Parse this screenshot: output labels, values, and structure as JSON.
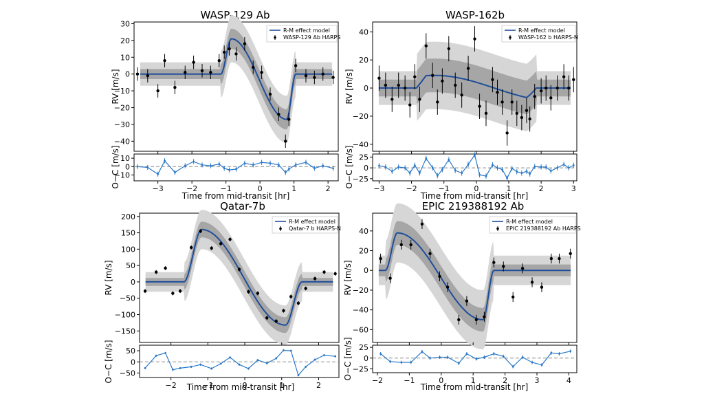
{
  "colors": {
    "model": "#1f4e9c",
    "resid": "#2a78c8",
    "band1": "#d6d6d6",
    "band2": "#a6a6a6",
    "point": "#000000",
    "zero": "#8a8a8a"
  },
  "chart_data": [
    {
      "type": "scatter",
      "title": "WASP-129 Ab",
      "xlabel": "Time from mid-transit [hr]",
      "ylabel": "RV [m/s]",
      "reslabel": "O−C [m/s]",
      "legend": [
        "R-M effect model",
        "WASP-129 Ab HARPS"
      ],
      "legend_position": "top-right",
      "xlim": [
        -3.7,
        2.3
      ],
      "ylim": [
        -46,
        31
      ],
      "yticks": [
        30,
        20,
        10,
        0,
        -10,
        -20,
        -30,
        -40
      ],
      "xticks": [
        -3,
        -2,
        -1,
        0,
        1,
        2
      ],
      "res_ylim": [
        -17,
        15
      ],
      "res_yticks": [
        10,
        0,
        -10
      ],
      "model": {
        "shape": "bump_dip",
        "t1": -1.15,
        "t2": 1.05,
        "amp": 21,
        "peak_frac": 0.14,
        "trough": -27,
        "trough_frac": 0.88,
        "band1": 7,
        "band2": 3
      },
      "points": {
        "x": [
          -3.6,
          -3.3,
          -3.0,
          -2.8,
          -2.5,
          -2.2,
          -1.95,
          -1.7,
          -1.45,
          -1.2,
          -1.05,
          -0.9,
          -0.7,
          -0.45,
          -0.2,
          0.05,
          0.3,
          0.55,
          0.75,
          0.85,
          1.05,
          1.35,
          1.6,
          1.85,
          2.15
        ],
        "y": [
          0,
          -1,
          -10,
          8,
          -8,
          1,
          7,
          2,
          1,
          8,
          13,
          15,
          12,
          18,
          4,
          1,
          -12,
          -24,
          -40,
          -27,
          5,
          -1,
          -2,
          0,
          -2
        ],
        "err": [
          4,
          4,
          4,
          4,
          4,
          4,
          4,
          4,
          4,
          4,
          4,
          4,
          4,
          4,
          4,
          4,
          4,
          4,
          4,
          4,
          4,
          4,
          4,
          4,
          4
        ]
      },
      "residuals": {
        "x": [
          -3.6,
          -3.3,
          -3.0,
          -2.8,
          -2.5,
          -2.2,
          -1.95,
          -1.7,
          -1.45,
          -1.2,
          -1.05,
          -0.9,
          -0.7,
          -0.45,
          -0.2,
          0.05,
          0.3,
          0.55,
          0.75,
          0.85,
          1.05,
          1.35,
          1.6,
          1.85,
          2.15
        ],
        "y": [
          0,
          -1,
          -9,
          7,
          -7,
          1,
          6,
          2,
          1,
          3,
          -2,
          -4,
          -3,
          4,
          2,
          5,
          4,
          2,
          -7,
          -3,
          2,
          5,
          -2,
          1,
          -2
        ],
        "err": [
          3,
          3,
          3,
          3,
          3,
          3,
          3,
          3,
          3,
          3,
          3,
          3,
          3,
          3,
          3,
          3,
          3,
          3,
          3,
          3,
          3,
          3,
          3,
          3,
          3
        ]
      }
    },
    {
      "type": "scatter",
      "title": "WASP-162b",
      "xlabel": "Time from mid-transit [hr]",
      "ylabel": "RV [m/s]",
      "reslabel": "O−C [m/s]",
      "legend": [
        "R-M effect model",
        "WASP-162 b HARPS-N"
      ],
      "legend_position": "top-right",
      "xlim": [
        -3.2,
        3.1
      ],
      "ylim": [
        -45,
        47
      ],
      "yticks": [
        40,
        20,
        0,
        -20,
        -40
      ],
      "xticks": [
        -3,
        -2,
        -1,
        0,
        1,
        2,
        3
      ],
      "res_ylim": [
        -30,
        32
      ],
      "res_yticks": [
        25,
        0,
        -25
      ],
      "model": {
        "shape": "sine",
        "t1": -1.85,
        "t2": 1.85,
        "amp": 9,
        "band1": 12,
        "band2": 6
      },
      "points": {
        "x": [
          -3.0,
          -2.8,
          -2.6,
          -2.4,
          -2.2,
          -2.05,
          -1.9,
          -1.75,
          -1.55,
          -1.35,
          -1.2,
          -1.05,
          -0.85,
          -0.65,
          -0.45,
          -0.25,
          -0.05,
          0.1,
          0.3,
          0.5,
          0.65,
          0.8,
          0.95,
          1.1,
          1.25,
          1.4,
          1.55,
          1.65,
          1.8,
          2.0,
          2.15,
          2.3,
          2.5,
          2.7,
          2.85,
          3.0
        ],
        "y": [
          7,
          2,
          -8,
          2,
          0,
          -12,
          8,
          -8,
          30,
          9,
          -10,
          5,
          28,
          2,
          -5,
          14,
          35,
          -13,
          -18,
          6,
          -3,
          -10,
          -32,
          -10,
          -18,
          -21,
          -16,
          -22,
          -6,
          -2,
          0,
          -7,
          0,
          8,
          0,
          6
        ],
        "err": [
          9,
          9,
          9,
          9,
          9,
          9,
          9,
          9,
          9,
          9,
          9,
          9,
          9,
          9,
          9,
          9,
          9,
          9,
          9,
          9,
          9,
          9,
          9,
          9,
          9,
          9,
          9,
          9,
          9,
          9,
          9,
          9,
          9,
          9,
          9,
          9
        ]
      },
      "residuals": {
        "x": [
          -3.0,
          -2.8,
          -2.6,
          -2.4,
          -2.2,
          -2.05,
          -1.9,
          -1.75,
          -1.55,
          -1.35,
          -1.2,
          -1.05,
          -0.85,
          -0.65,
          -0.45,
          -0.25,
          -0.05,
          0.1,
          0.3,
          0.5,
          0.65,
          0.8,
          0.95,
          1.1,
          1.25,
          1.4,
          1.55,
          1.65,
          1.8,
          2.0,
          2.15,
          2.3,
          2.5,
          2.7,
          2.85,
          3.0
        ],
        "y": [
          5,
          2,
          -8,
          2,
          0,
          -12,
          6,
          -12,
          22,
          0,
          -18,
          -4,
          19,
          -6,
          -12,
          8,
          30,
          -16,
          -19,
          7,
          0,
          -4,
          -24,
          -1,
          -9,
          -12,
          -8,
          -14,
          3,
          2,
          2,
          -7,
          0,
          8,
          0,
          6
        ],
        "err": [
          6,
          6,
          6,
          6,
          6,
          6,
          6,
          6,
          6,
          6,
          6,
          6,
          6,
          6,
          6,
          6,
          6,
          6,
          6,
          6,
          6,
          6,
          6,
          6,
          6,
          6,
          6,
          6,
          6,
          6,
          6,
          6,
          6,
          6,
          6,
          6
        ]
      }
    },
    {
      "type": "scatter",
      "title": "Qatar-7b",
      "xlabel": "Time from mid-transit [hr]",
      "ylabel": "RV [m/s]",
      "reslabel": "O−C [m/s]",
      "legend": [
        "R-M effect model",
        "Qatar-7 b HARPS-N"
      ],
      "legend_position": "top-right",
      "xlim": [
        -2.85,
        2.55
      ],
      "ylim": [
        -185,
        210
      ],
      "yticks": [
        200,
        150,
        100,
        50,
        0,
        -50,
        -100,
        -150
      ],
      "xticks": [
        -2,
        -1,
        0,
        1,
        2
      ],
      "res_ylim": [
        -70,
        75
      ],
      "res_yticks": [
        50,
        0,
        -50
      ],
      "model": {
        "shape": "bump_dip",
        "t1": -1.65,
        "t2": 1.55,
        "amp": 160,
        "peak_frac": 0.15,
        "trough": -132,
        "trough_frac": 0.86,
        "band1": 30,
        "band2": 12
      },
      "points": {
        "x": [
          -2.7,
          -2.4,
          -2.15,
          -1.95,
          -1.75,
          -1.45,
          -1.2,
          -0.9,
          -0.65,
          -0.4,
          -0.15,
          0.1,
          0.35,
          0.6,
          0.85,
          1.05,
          1.25,
          1.45,
          1.65,
          1.9,
          2.15,
          2.45
        ],
        "y": [
          -28,
          30,
          42,
          -35,
          -28,
          105,
          155,
          103,
          117,
          130,
          38,
          -30,
          -35,
          -110,
          -120,
          -88,
          -45,
          -65,
          -20,
          10,
          30,
          25
        ],
        "err": [
          6,
          6,
          6,
          6,
          6,
          6,
          6,
          6,
          6,
          6,
          6,
          6,
          6,
          6,
          6,
          6,
          6,
          6,
          6,
          6,
          6,
          6
        ]
      },
      "residuals": {
        "x": [
          -2.7,
          -2.4,
          -2.15,
          -1.95,
          -1.75,
          -1.45,
          -1.2,
          -0.9,
          -0.65,
          -0.4,
          -0.15,
          0.1,
          0.35,
          0.6,
          0.85,
          1.05,
          1.25,
          1.45,
          1.65,
          1.9,
          2.15,
          2.45
        ],
        "y": [
          -28,
          28,
          40,
          -35,
          -28,
          -22,
          -12,
          -30,
          -8,
          20,
          -12,
          -30,
          8,
          -6,
          16,
          52,
          50,
          -60,
          -22,
          10,
          30,
          25
        ],
        "err": [
          5,
          5,
          5,
          5,
          5,
          5,
          5,
          5,
          5,
          5,
          5,
          5,
          5,
          5,
          5,
          5,
          5,
          5,
          5,
          5,
          5,
          5
        ]
      }
    },
    {
      "type": "scatter",
      "title": "EPIC 219388192 Ab",
      "xlabel": "Time from mid-transit [hr]",
      "ylabel": "RV [m/s]",
      "reslabel": "O−C [m/s]",
      "legend": [
        "R-M effect model",
        "EPIC 219388192 Ab HARPS"
      ],
      "legend_position": "top-right",
      "xlim": [
        -2.15,
        4.25
      ],
      "ylim": [
        -73,
        58
      ],
      "yticks": [
        40,
        20,
        0,
        -20,
        -40,
        -60
      ],
      "xticks": [
        -2,
        -1,
        0,
        1,
        2,
        3,
        4
      ],
      "res_ylim": [
        -34,
        30
      ],
      "res_yticks": [
        25,
        0,
        -25
      ],
      "model": {
        "shape": "bump_dip",
        "t1": -1.75,
        "t2": 1.65,
        "amp": 38,
        "peak_frac": 0.11,
        "trough": -50,
        "trough_frac": 0.9,
        "band1": 15,
        "band2": 6
      },
      "points": {
        "x": [
          -1.9,
          -1.6,
          -1.25,
          -0.95,
          -0.6,
          -0.35,
          -0.05,
          0.2,
          0.55,
          0.8,
          1.1,
          1.35,
          1.65,
          1.95,
          2.25,
          2.55,
          2.85,
          3.15,
          3.45,
          3.7,
          4.05
        ],
        "y": [
          12,
          -8,
          26,
          26,
          47,
          17,
          -6,
          -17,
          -50,
          -31,
          -50,
          -47,
          8,
          4,
          -27,
          2,
          -12,
          -17,
          12,
          12,
          17
        ],
        "err": [
          5,
          5,
          5,
          5,
          5,
          5,
          5,
          5,
          5,
          5,
          5,
          5,
          5,
          5,
          5,
          5,
          5,
          5,
          5,
          5,
          5
        ]
      },
      "residuals": {
        "x": [
          -1.9,
          -1.6,
          -1.25,
          -0.95,
          -0.6,
          -0.35,
          -0.05,
          0.2,
          0.55,
          0.8,
          1.1,
          1.35,
          1.65,
          1.95,
          2.25,
          2.55,
          2.85,
          3.15,
          3.45,
          3.7,
          4.05
        ],
        "y": [
          10,
          -8,
          -10,
          -10,
          15,
          0,
          2,
          2,
          -12,
          10,
          -2,
          2,
          10,
          4,
          -20,
          2,
          -10,
          -16,
          12,
          10,
          16
        ],
        "err": [
          4,
          4,
          4,
          4,
          4,
          4,
          4,
          4,
          4,
          4,
          4,
          4,
          4,
          4,
          4,
          4,
          4,
          4,
          4,
          4,
          4
        ]
      }
    }
  ]
}
